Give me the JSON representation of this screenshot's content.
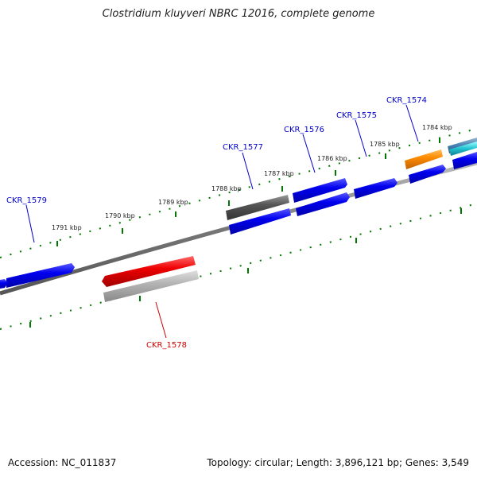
{
  "title": "Clostridium kluyveri NBRC 12016, complete genome",
  "footer": {
    "accession": "Accession: NC_011837",
    "info": "Topology: circular; Length: 3,896,121 bp; Genes: 3,549"
  },
  "colors": {
    "cds_forward": "#0000ee",
    "cds_reverse": "#0000ee",
    "selected_gene": "#ee0000",
    "rna": "#ff8c00",
    "pseudo": "#555555",
    "other": "#999999",
    "label_blue": "#0000cc",
    "label_red": "#cc0000",
    "tick": "#007700",
    "backbone": "#777777"
  },
  "tick_labels": [
    "1791 kbp",
    "1790 kbp",
    "1789 kbp",
    "1788 kbp",
    "1787 kbp",
    "1786 kbp",
    "1785 kbp",
    "1784 kbp"
  ],
  "gene_labels": [
    {
      "name": "CKR_1579",
      "color": "label_blue"
    },
    {
      "name": "CKR_1577",
      "color": "label_blue"
    },
    {
      "name": "CKR_1576",
      "color": "label_blue"
    },
    {
      "name": "CKR_1575",
      "color": "label_blue"
    },
    {
      "name": "CKR_1574",
      "color": "label_blue"
    },
    {
      "name": "CKR_1578",
      "color": "label_red"
    }
  ]
}
